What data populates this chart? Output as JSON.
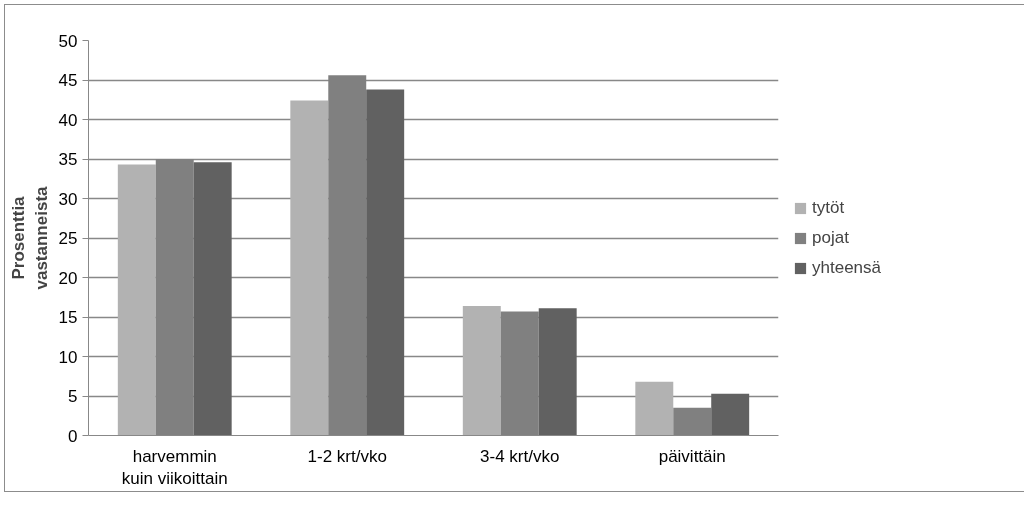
{
  "chart_data": {
    "type": "bar",
    "ylabel": "Prosenttia vastanneista",
    "categories": [
      "harvemmin kuin viikoittain",
      "1-2 krt/vko",
      "3-4 krt/vko",
      "päivittäin"
    ],
    "series": [
      {
        "name": "tytöt",
        "color": "#b2b2b2",
        "values": [
          34.3,
          42.4,
          16.4,
          6.8
        ]
      },
      {
        "name": "pojat",
        "color": "#808080",
        "values": [
          35.0,
          45.6,
          15.7,
          3.5
        ]
      },
      {
        "name": "yhteensä",
        "color": "#616161",
        "values": [
          34.6,
          43.8,
          16.1,
          5.3
        ]
      }
    ],
    "ylim": [
      0,
      50
    ],
    "yticks": [
      0,
      5,
      10,
      15,
      20,
      25,
      30,
      35,
      40,
      45,
      50
    ],
    "grid": "y",
    "legend": "right"
  }
}
